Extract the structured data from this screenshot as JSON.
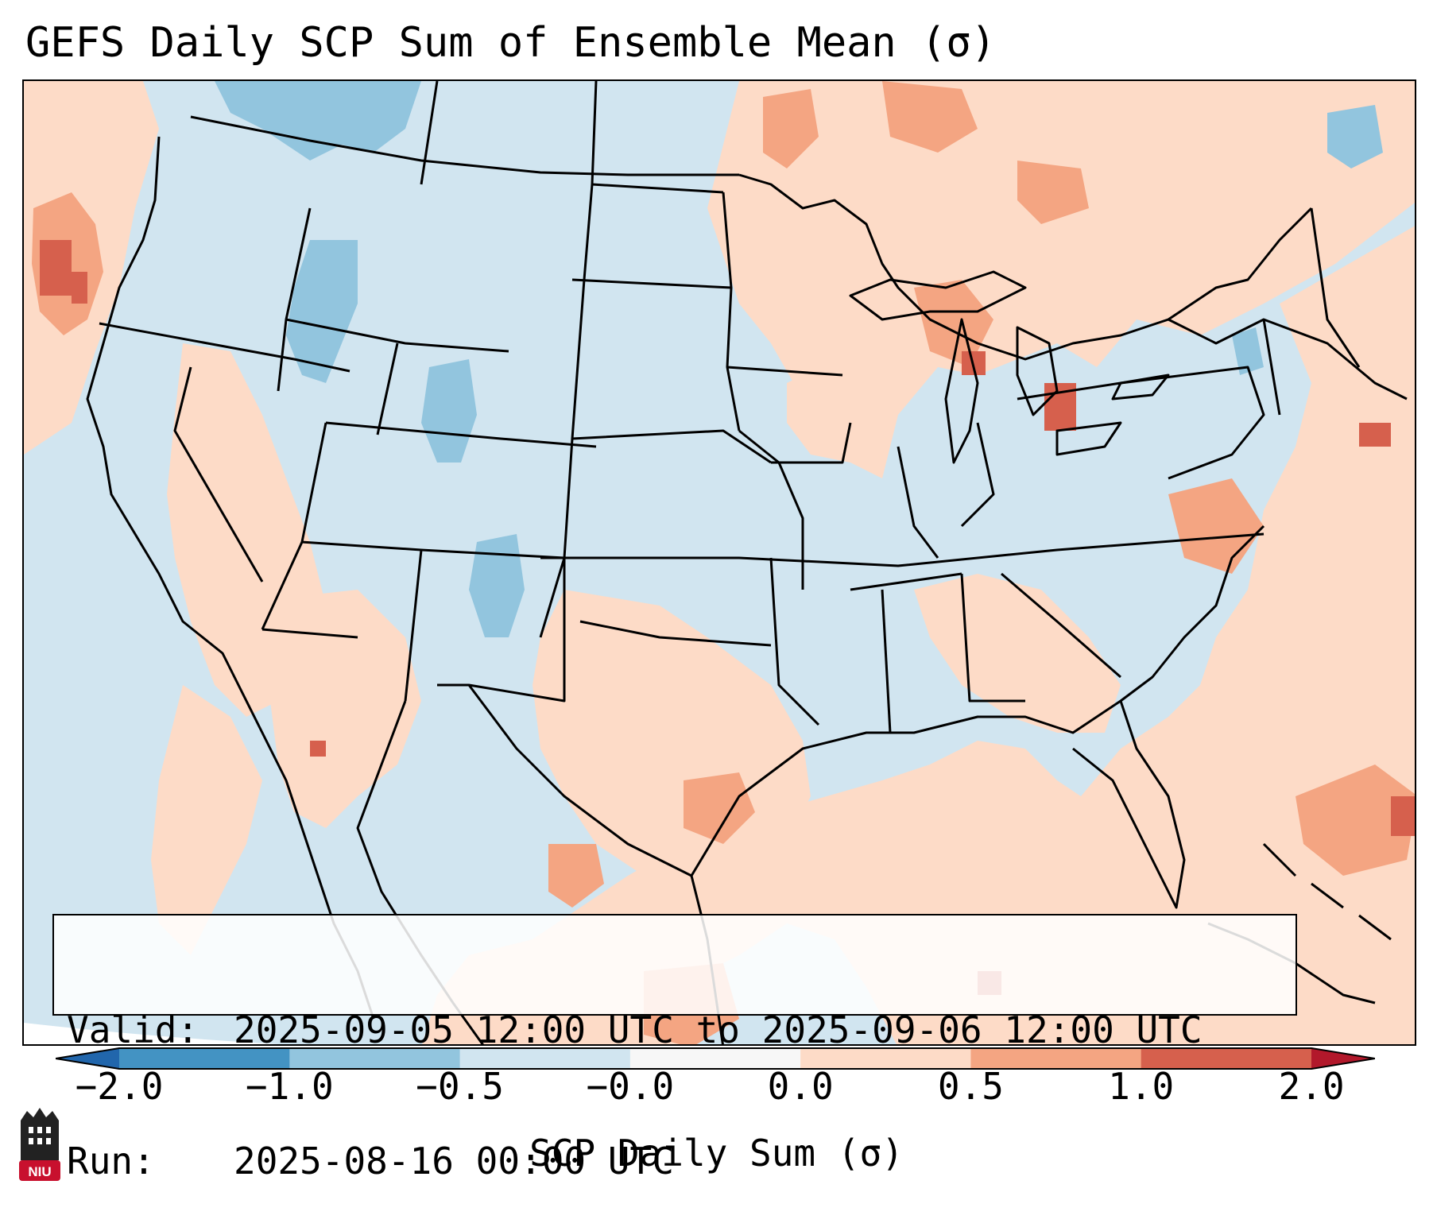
{
  "title": "GEFS Daily SCP Sum of Ensemble Mean (σ)",
  "info": {
    "valid_label": "Valid:",
    "valid_value": "2025-09-05 12:00 UTC to 2025-09-06 12:00 UTC",
    "run_label": "Run:",
    "run_value": "2025-08-16 00:00 UTC"
  },
  "colorbar": {
    "label": "SCP Daily Sum (σ)",
    "ticks": [
      "−2.0",
      "−1.0",
      "−0.5",
      "−0.0",
      "0.0",
      "0.5",
      "1.0",
      "2.0"
    ],
    "bins": [
      {
        "from": -2.0,
        "to": -1.0,
        "color": "#4393c3"
      },
      {
        "from": -1.0,
        "to": -0.5,
        "color": "#92c5de"
      },
      {
        "from": -0.5,
        "to": -0.0,
        "color": "#d1e5f0"
      },
      {
        "from": -0.0,
        "to": 0.0,
        "color": "#f7f7f7"
      },
      {
        "from": 0.0,
        "to": 0.5,
        "color": "#fddbc7"
      },
      {
        "from": 0.5,
        "to": 1.0,
        "color": "#f4a582"
      },
      {
        "from": 1.0,
        "to": 2.0,
        "color": "#d6604d"
      }
    ],
    "under_color": "#2166ac",
    "over_color": "#b2182b"
  },
  "colors": {
    "ocean_background": "#d1e5f0",
    "positive_light": "#fddbc7",
    "positive_mid": "#f4a582",
    "positive_high": "#d6604d",
    "negative_mid": "#92c5de",
    "borders": "#000000"
  },
  "logo": {
    "text": "NIU",
    "color": "#c8102e"
  }
}
